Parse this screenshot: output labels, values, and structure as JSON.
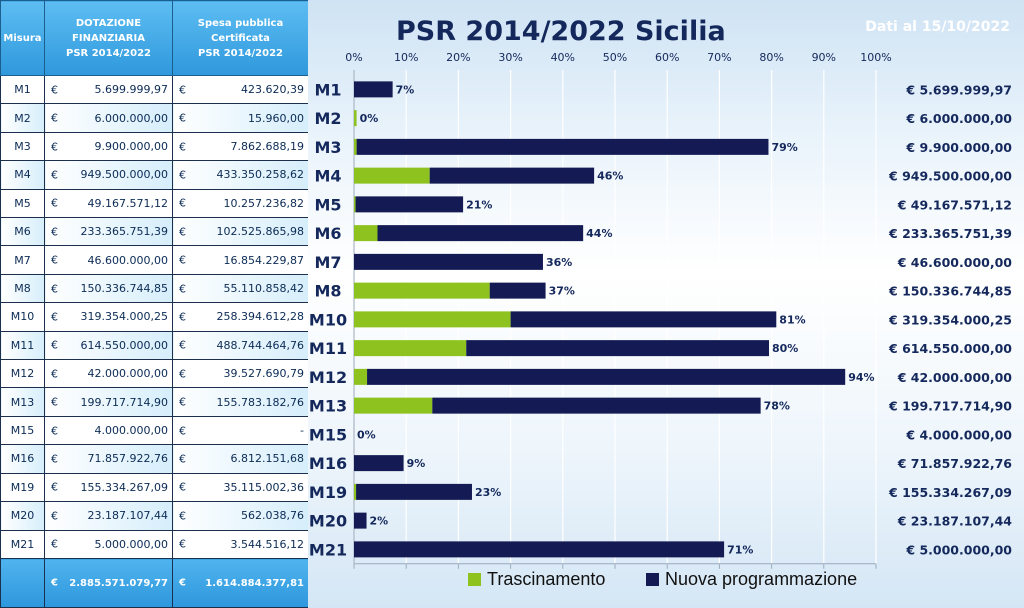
{
  "table": {
    "headers": {
      "misura": "Misura",
      "dotazione": [
        "DOTAZIONE",
        "FINANZIARIA",
        "PSR 2014/2022"
      ],
      "spesa": [
        "Spesa pubblica",
        "Certificata",
        "PSR 2014/2022"
      ]
    },
    "currency": "€",
    "rows": [
      {
        "code": "M1",
        "dotazione": "5.699.999,97",
        "spesa": "423.620,39"
      },
      {
        "code": "M2",
        "dotazione": "6.000.000,00",
        "spesa": "15.960,00"
      },
      {
        "code": "M3",
        "dotazione": "9.900.000,00",
        "spesa": "7.862.688,19"
      },
      {
        "code": "M4",
        "dotazione": "949.500.000,00",
        "spesa": "433.350.258,62"
      },
      {
        "code": "M5",
        "dotazione": "49.167.571,12",
        "spesa": "10.257.236,82"
      },
      {
        "code": "M6",
        "dotazione": "233.365.751,39",
        "spesa": "102.525.865,98"
      },
      {
        "code": "M7",
        "dotazione": "46.600.000,00",
        "spesa": "16.854.229,87"
      },
      {
        "code": "M8",
        "dotazione": "150.336.744,85",
        "spesa": "55.110.858,42"
      },
      {
        "code": "M10",
        "dotazione": "319.354.000,25",
        "spesa": "258.394.612,28"
      },
      {
        "code": "M11",
        "dotazione": "614.550.000,00",
        "spesa": "488.744.464,76"
      },
      {
        "code": "M12",
        "dotazione": "42.000.000,00",
        "spesa": "39.527.690,79"
      },
      {
        "code": "M13",
        "dotazione": "199.717.714,90",
        "spesa": "155.783.182,76"
      },
      {
        "code": "M15",
        "dotazione": "4.000.000,00",
        "spesa": "-"
      },
      {
        "code": "M16",
        "dotazione": "71.857.922,76",
        "spesa": "6.812.151,68"
      },
      {
        "code": "M19",
        "dotazione": "155.334.267,09",
        "spesa": "35.115.002,36"
      },
      {
        "code": "M20",
        "dotazione": "23.187.107,44",
        "spesa": "562.038,76"
      },
      {
        "code": "M21",
        "dotazione": "5.000.000,00",
        "spesa": "3.544.516,12"
      }
    ],
    "totals": {
      "dotazione": "2.885.571.079,77",
      "spesa": "1.614.884.377,81"
    }
  },
  "chart_data": {
    "type": "bar",
    "orientation": "horizontal",
    "stacked": true,
    "title": "PSR 2014/2022 Sicilia",
    "date_note": "Dati al 15/10/2022",
    "categories": [
      "M1",
      "M2",
      "M3",
      "M4",
      "M5",
      "M6",
      "M7",
      "M8",
      "M10",
      "M11",
      "M12",
      "M13",
      "M15",
      "M16",
      "M19",
      "M20",
      "M21"
    ],
    "series": [
      {
        "name": "Trascinamento",
        "color": "#8dc21f",
        "values": [
          0,
          0.5,
          0.5,
          14.5,
          0.3,
          4.5,
          0,
          26,
          30,
          21.5,
          2.5,
          15,
          0,
          0,
          0.4,
          0,
          0
        ]
      },
      {
        "name": "Nuova programmazione",
        "color": "#141b54",
        "values": [
          7.4,
          0,
          78.9,
          31.5,
          20.6,
          39.4,
          36.2,
          10.7,
          50.9,
          58,
          91.6,
          62.9,
          0,
          9.5,
          22.2,
          2.4,
          70.9
        ]
      }
    ],
    "data_labels": [
      "7%",
      "0%",
      "79%",
      "46%",
      "21%",
      "44%",
      "36%",
      "37%",
      "81%",
      "80%",
      "94%",
      "78%",
      "0%",
      "9%",
      "23%",
      "2%",
      "71%"
    ],
    "right_labels": [
      "€ 5.699.999,97",
      "€ 6.000.000,00",
      "€ 9.900.000,00",
      "€ 949.500.000,00",
      "€ 49.167.571,12",
      "€ 233.365.751,39",
      "€ 46.600.000,00",
      "€ 150.336.744,85",
      "€ 319.354.000,25",
      "€ 614.550.000,00",
      "€ 42.000.000,00",
      "€ 199.717.714,90",
      "€ 4.000.000,00",
      "€ 71.857.922,76",
      "€ 155.334.267,09",
      "€ 23.187.107,44",
      "€ 5.000.000,00"
    ],
    "x_ticks": [
      "0%",
      "10%",
      "20%",
      "30%",
      "40%",
      "50%",
      "60%",
      "70%",
      "80%",
      "90%",
      "100%"
    ],
    "xlim": [
      0,
      100
    ],
    "tick_position": "top",
    "legend_position": "bottom",
    "grid": true
  }
}
